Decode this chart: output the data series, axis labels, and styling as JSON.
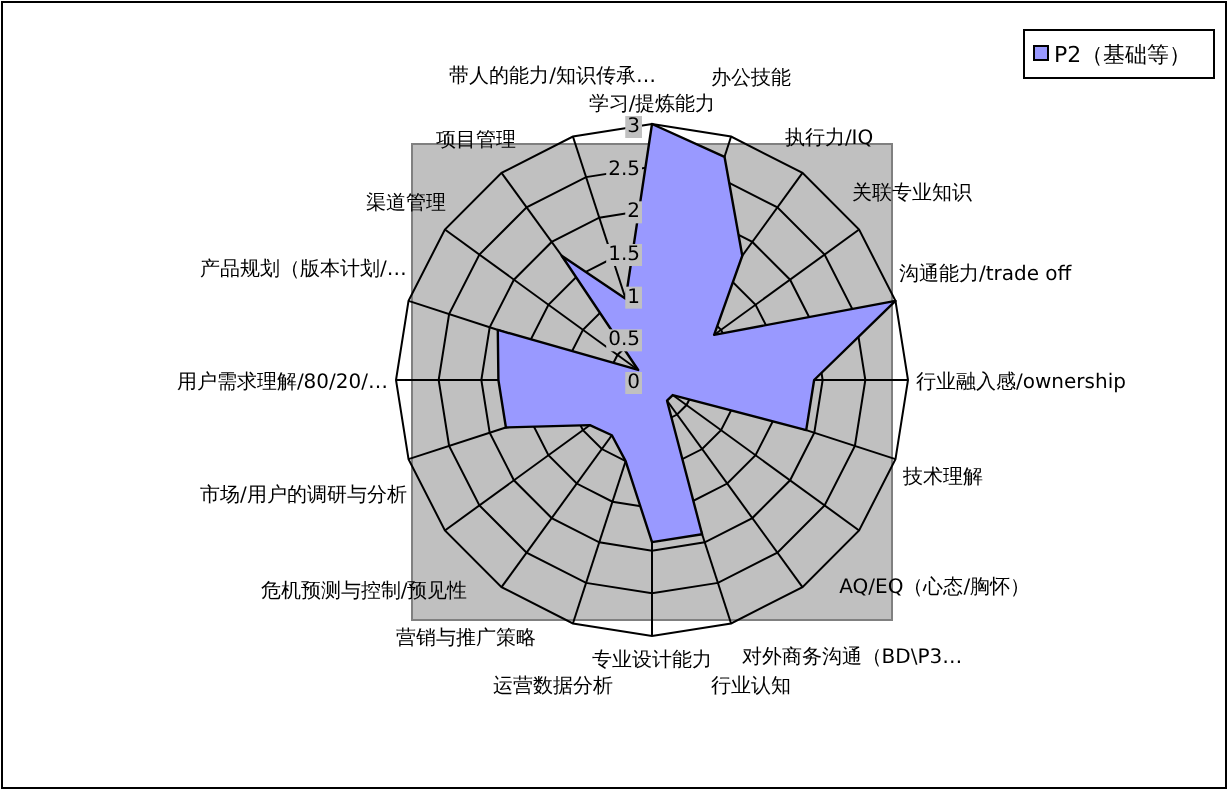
{
  "chart_data": {
    "type": "radar",
    "categories": [
      "学习/提炼能力",
      "办公技能",
      "执行力/IQ",
      "关联专业知识",
      "沟通能力/trade off",
      "行业融入感/ownership",
      "技术理解",
      "AQ/EQ（心态/胸怀）",
      "对外商务沟通（BD\\P3…",
      "行业认知",
      "专业设计能力",
      "运营数据分析",
      "营销与推广策略",
      "危机预测与控制/预见性",
      "市场/用户的调研与分析",
      "用户需求理解/80/20/…",
      "产品规划（版本计划/…",
      "渠道管理",
      "项目管理",
      "带人的能力/知识传承…"
    ],
    "series": [
      {
        "name": "P2（基础等）",
        "color": "#9999ff",
        "values": [
          3,
          2.75,
          1.8,
          0.9,
          3,
          1.9,
          1.9,
          0.3,
          0.3,
          1.9,
          1.9,
          1,
          0.8,
          0.9,
          1.8,
          1.8,
          1.9,
          0.2,
          1.8,
          1
        ]
      }
    ],
    "ylim": [
      0,
      3
    ],
    "yticks": [
      0,
      0.5,
      1,
      1.5,
      2,
      2.5,
      3
    ],
    "grid": true,
    "legend": "top right"
  }
}
